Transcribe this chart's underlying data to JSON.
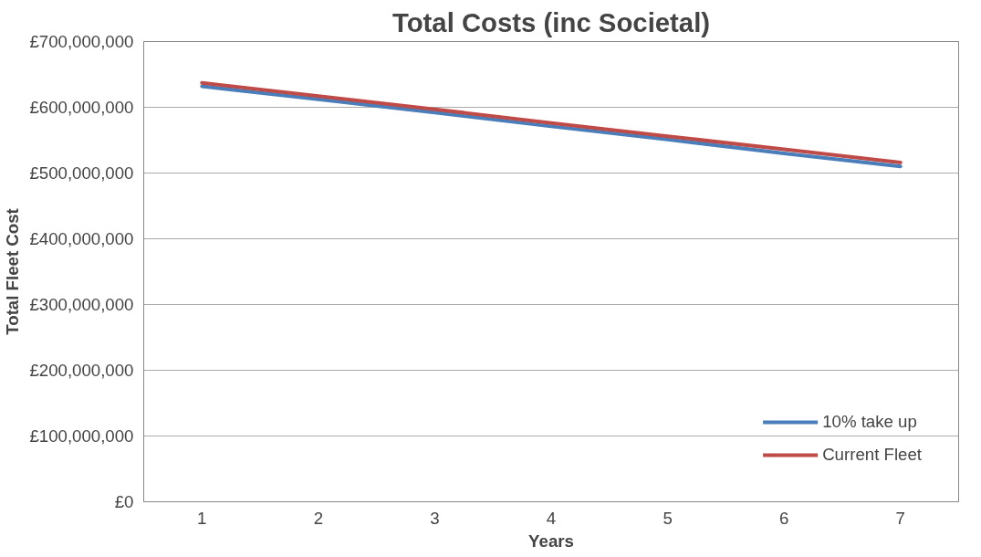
{
  "chart_data": {
    "type": "line",
    "title": "Total Costs (inc Societal)",
    "xlabel": "Years",
    "ylabel": "Total Fleet Cost",
    "categories": [
      "1",
      "2",
      "3",
      "4",
      "5",
      "6",
      "7"
    ],
    "series": [
      {
        "name": "10% take up",
        "color": "#4a7ebb",
        "values": [
          632000000,
          612000000,
          592000000,
          571000000,
          551000000,
          530000000,
          510000000
        ]
      },
      {
        "name": "Current Fleet",
        "color": "#be4b48",
        "values": [
          637000000,
          617000000,
          597000000,
          576000000,
          556000000,
          536000000,
          516000000
        ]
      }
    ],
    "ylim": [
      0,
      700000000
    ],
    "yticks": [
      {
        "value": 0,
        "label": "£0"
      },
      {
        "value": 100000000,
        "label": "£100,000,000"
      },
      {
        "value": 200000000,
        "label": "£200,000,000"
      },
      {
        "value": 300000000,
        "label": "£300,000,000"
      },
      {
        "value": 400000000,
        "label": "£400,000,000"
      },
      {
        "value": 500000000,
        "label": "£500,000,000"
      },
      {
        "value": 600000000,
        "label": "£600,000,000"
      },
      {
        "value": 700000000,
        "label": "£700,000,000"
      }
    ],
    "grid": "y",
    "legend": "bottom right",
    "marker": "none",
    "line_style": "solid"
  }
}
